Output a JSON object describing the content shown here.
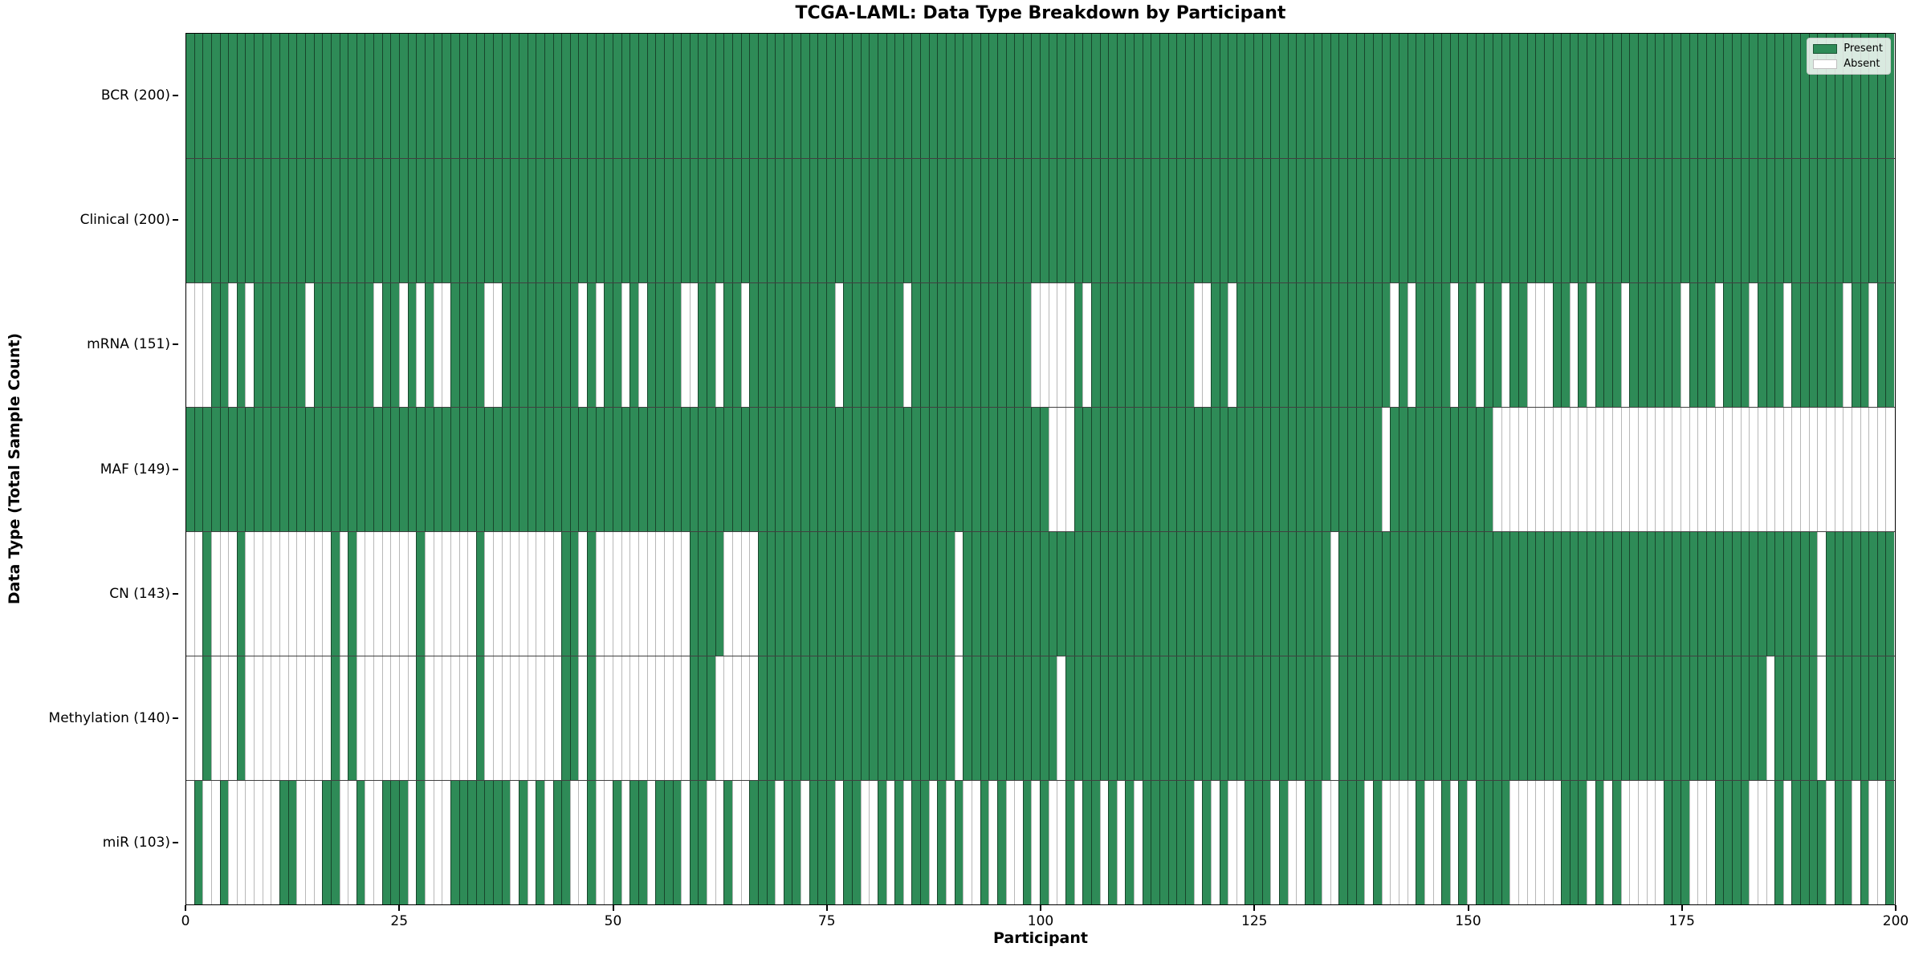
{
  "title": "TCGA-LAML: Data Type Breakdown by Participant",
  "xlabel": "Participant",
  "ylabel": "Data Type (Total Sample Count)",
  "legend": {
    "present_label": "Present",
    "absent_label": "Absent"
  },
  "colors": {
    "present": "#2e8b57",
    "absent": "#ffffff",
    "row_divider": "#2b2b2b",
    "spine": "#000000"
  },
  "x_ticks": [
    0,
    25,
    50,
    75,
    100,
    125,
    150,
    175,
    200
  ],
  "chart_data": {
    "type": "heatmap",
    "x_range": [
      0,
      200
    ],
    "n_participants": 200,
    "legend_position": "upper right",
    "grid": false,
    "rows": [
      {
        "label": "BCR (200)",
        "data_type": "BCR",
        "total": 200,
        "absent": []
      },
      {
        "label": "Clinical (200)",
        "data_type": "Clinical",
        "total": 200,
        "absent": []
      },
      {
        "label": "mRNA (151)",
        "data_type": "mRNA",
        "total": 151,
        "absent": [
          0,
          1,
          2,
          5,
          7,
          14,
          22,
          25,
          27,
          29,
          30,
          35,
          36,
          46,
          48,
          51,
          53,
          58,
          59,
          62,
          65,
          76,
          84,
          99,
          100,
          101,
          102,
          103,
          105,
          118,
          119,
          122,
          141,
          143,
          148,
          151,
          154,
          157,
          158,
          159,
          162,
          164,
          168,
          175,
          179,
          183,
          187,
          194,
          197
        ]
      },
      {
        "label": "MAF (149)",
        "data_type": "MAF",
        "total": 149,
        "absent": [
          101,
          102,
          103,
          140,
          153,
          154,
          155,
          156,
          157,
          158,
          159,
          160,
          161,
          162,
          163,
          164,
          165,
          166,
          167,
          168,
          169,
          170,
          171,
          172,
          173,
          174,
          175,
          176,
          177,
          178,
          179,
          180,
          181,
          182,
          183,
          184,
          185,
          186,
          187,
          188,
          189,
          190,
          191,
          192,
          193,
          194,
          195,
          196,
          197,
          198,
          199
        ]
      },
      {
        "label": "CN (143)",
        "data_type": "CN",
        "total": 143,
        "absent": [
          0,
          1,
          3,
          4,
          5,
          7,
          8,
          9,
          10,
          11,
          12,
          13,
          14,
          15,
          16,
          18,
          20,
          21,
          22,
          23,
          24,
          25,
          26,
          28,
          29,
          30,
          31,
          32,
          33,
          35,
          36,
          37,
          38,
          39,
          40,
          41,
          42,
          43,
          46,
          48,
          49,
          50,
          51,
          52,
          53,
          54,
          55,
          56,
          57,
          58,
          63,
          64,
          65,
          66,
          90,
          134,
          191
        ]
      },
      {
        "label": "Methylation (140)",
        "data_type": "Methylation",
        "total": 140,
        "absent": [
          0,
          1,
          3,
          4,
          5,
          7,
          8,
          9,
          10,
          11,
          12,
          13,
          14,
          15,
          16,
          18,
          20,
          21,
          22,
          23,
          24,
          25,
          26,
          28,
          29,
          30,
          31,
          32,
          33,
          35,
          36,
          37,
          38,
          39,
          40,
          41,
          42,
          43,
          46,
          48,
          49,
          50,
          51,
          52,
          53,
          54,
          55,
          56,
          57,
          58,
          62,
          63,
          64,
          65,
          66,
          90,
          102,
          134,
          185,
          191
        ]
      },
      {
        "label": "miR (103)",
        "data_type": "miR",
        "total": 103,
        "absent": [
          0,
          2,
          3,
          5,
          6,
          7,
          8,
          9,
          10,
          13,
          14,
          15,
          18,
          19,
          21,
          22,
          26,
          28,
          29,
          30,
          38,
          40,
          42,
          45,
          46,
          48,
          49,
          51,
          54,
          58,
          61,
          62,
          64,
          65,
          69,
          72,
          76,
          79,
          80,
          82,
          84,
          87,
          89,
          91,
          92,
          94,
          96,
          97,
          99,
          101,
          102,
          104,
          107,
          109,
          111,
          118,
          120,
          122,
          123,
          127,
          129,
          130,
          133,
          134,
          138,
          140,
          141,
          142,
          143,
          145,
          146,
          148,
          150,
          155,
          156,
          157,
          158,
          159,
          160,
          164,
          166,
          168,
          169,
          170,
          171,
          172,
          176,
          177,
          178,
          183,
          184,
          185,
          187,
          192,
          195,
          197,
          198
        ]
      }
    ]
  }
}
